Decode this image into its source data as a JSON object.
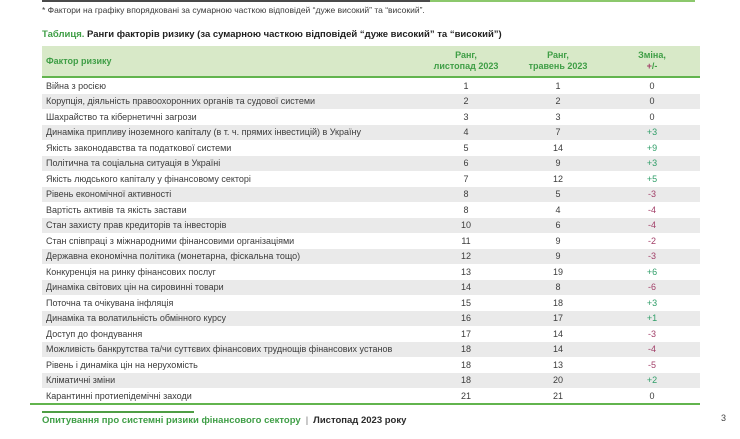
{
  "note": "* Фактори на графіку впорядковані за сумарною часткою відповідей “дуже високий” та “високий”.",
  "table": {
    "title_prefix": "Таблиця.",
    "title_rest": " Ранги факторів ризику (за сумарною часткою відповідей “дуже високий” та “високий”)",
    "columns": {
      "factor": "Фактор ризику",
      "rank_nov_l1": "Ранг,",
      "rank_nov_l2": "листопад 2023",
      "rank_may_l1": "Ранг,",
      "rank_may_l2": "травень 2023",
      "change_l1": "Зміна,",
      "change_plus": "+",
      "change_rest": "/-"
    },
    "rows": [
      {
        "factor": "Війна з росією",
        "rank_nov": "1",
        "rank_may": "1",
        "change": "0",
        "dir": "zero"
      },
      {
        "factor": "Корупція, діяльність правоохоронних органів та судової системи",
        "rank_nov": "2",
        "rank_may": "2",
        "change": "0",
        "dir": "zero"
      },
      {
        "factor": "Шахрайство та кібернетичні загрози",
        "rank_nov": "3",
        "rank_may": "3",
        "change": "0",
        "dir": "zero"
      },
      {
        "factor": "Динаміка припливу іноземного капіталу (в т. ч. прямих інвестицій) в Україну",
        "rank_nov": "4",
        "rank_may": "7",
        "change": "+3",
        "dir": "up"
      },
      {
        "factor": "Якість законодавства та податкової системи",
        "rank_nov": "5",
        "rank_may": "14",
        "change": "+9",
        "dir": "up"
      },
      {
        "factor": "Політична та соціальна ситуація в Україні",
        "rank_nov": "6",
        "rank_may": "9",
        "change": "+3",
        "dir": "up"
      },
      {
        "factor": "Якість людського капіталу у фінансовому секторі",
        "rank_nov": "7",
        "rank_may": "12",
        "change": "+5",
        "dir": "up"
      },
      {
        "factor": "Рівень економічної активності",
        "rank_nov": "8",
        "rank_may": "5",
        "change": "-3",
        "dir": "down"
      },
      {
        "factor": "Вартість активів та якість застави",
        "rank_nov": "8",
        "rank_may": "4",
        "change": "-4",
        "dir": "down"
      },
      {
        "factor": "Стан захисту прав кредиторів та інвесторів",
        "rank_nov": "10",
        "rank_may": "6",
        "change": "-4",
        "dir": "down"
      },
      {
        "factor": "Стан співпраці з міжнародними фінансовими організаціями",
        "rank_nov": "11",
        "rank_may": "9",
        "change": "-2",
        "dir": "down"
      },
      {
        "factor": "Державна економічна політика (монетарна, фіскальна тощо)",
        "rank_nov": "12",
        "rank_may": "9",
        "change": "-3",
        "dir": "down"
      },
      {
        "factor": "Конкуренція на ринку фінансових послуг",
        "rank_nov": "13",
        "rank_may": "19",
        "change": "+6",
        "dir": "up"
      },
      {
        "factor": "Динаміка світових цін на сировинні товари",
        "rank_nov": "14",
        "rank_may": "8",
        "change": "-6",
        "dir": "down"
      },
      {
        "factor": "Поточна та очікувана інфляція",
        "rank_nov": "15",
        "rank_may": "18",
        "change": "+3",
        "dir": "up"
      },
      {
        "factor": "Динаміка та волатильність обмінного курсу",
        "rank_nov": "16",
        "rank_may": "17",
        "change": "+1",
        "dir": "up"
      },
      {
        "factor": "Доступ до фондування",
        "rank_nov": "17",
        "rank_may": "14",
        "change": "-3",
        "dir": "down"
      },
      {
        "factor": "Можливість банкрутства та/чи суттєвих фінансових труднощів фінансових установ",
        "rank_nov": "18",
        "rank_may": "14",
        "change": "-4",
        "dir": "down"
      },
      {
        "factor": "Рівень і динаміка цін на нерухомість",
        "rank_nov": "18",
        "rank_may": "13",
        "change": "-5",
        "dir": "down"
      },
      {
        "factor": "Кліматичні зміни",
        "rank_nov": "18",
        "rank_may": "20",
        "change": "+2",
        "dir": "up"
      },
      {
        "factor": "Карантинні протиепідемічні заходи",
        "rank_nov": "21",
        "rank_may": "21",
        "change": "0",
        "dir": "zero"
      }
    ]
  },
  "footer": {
    "brand": "Опитування про системні ризики фінансового сектору",
    "separator": "|",
    "period": "Листопад 2023 року",
    "page_number": "3"
  },
  "colors": {
    "accent_green": "#3f9e46",
    "line_green": "#62b44e",
    "header_bg": "#d8e9c8",
    "positive": "#2f9e68",
    "negative": "#a23f68",
    "row_stripe": "#eaeaea"
  }
}
